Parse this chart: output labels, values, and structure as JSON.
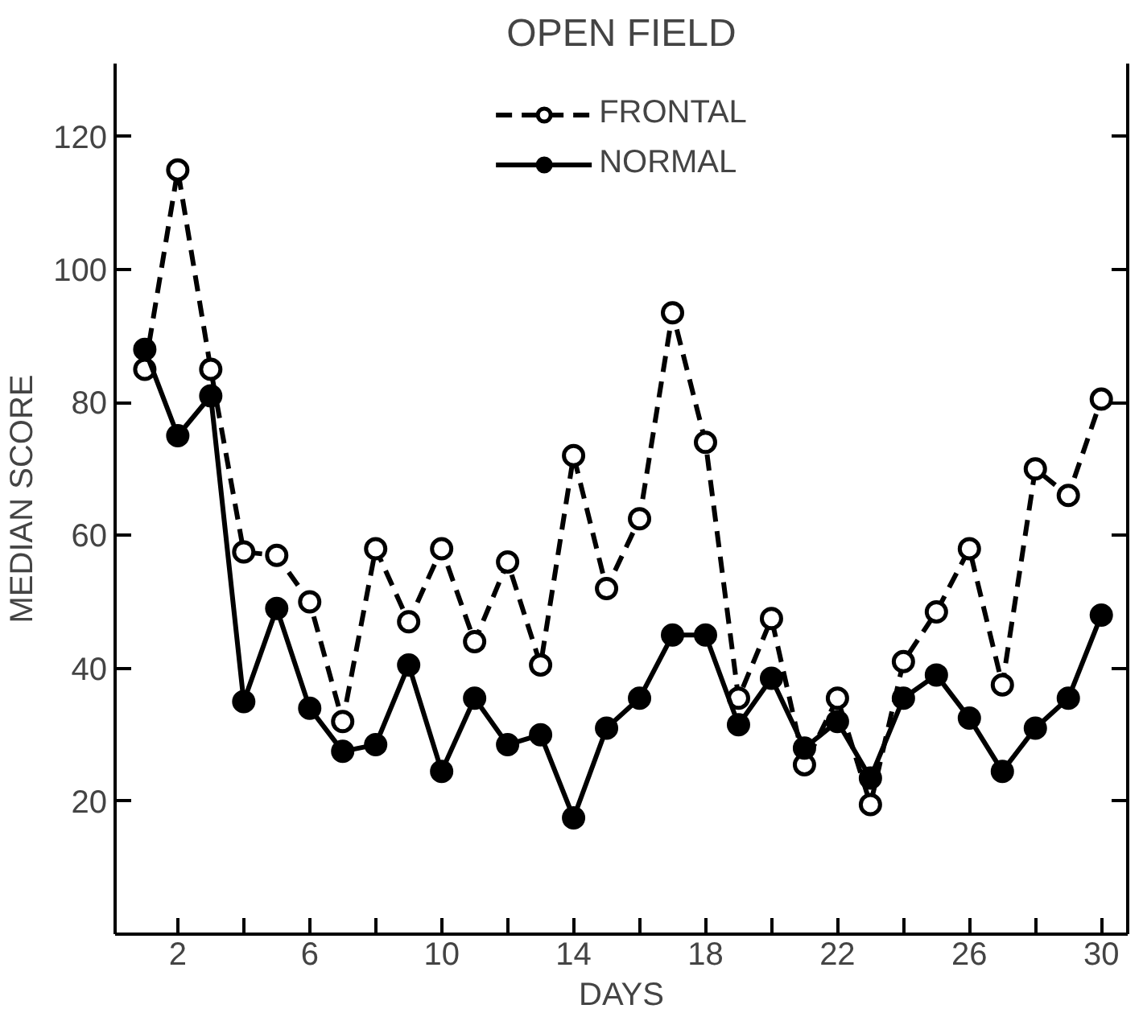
{
  "chart_data": {
    "type": "line",
    "title": "OPEN FIELD",
    "xlabel": "DAYS",
    "ylabel": "MEDIAN SCORE",
    "x": [
      1,
      2,
      3,
      4,
      5,
      6,
      7,
      8,
      9,
      10,
      11,
      12,
      13,
      14,
      15,
      16,
      17,
      18,
      19,
      20,
      21,
      22,
      23,
      24,
      25,
      26,
      27,
      28,
      29,
      30
    ],
    "series": [
      {
        "name": "FRONTAL",
        "color": "#000000",
        "line_style": "dashed",
        "marker": "circle",
        "values": [
          85,
          115,
          85,
          57.5,
          57,
          50,
          32,
          58,
          47,
          58,
          44,
          56,
          40.5,
          72,
          52,
          62.5,
          93.5,
          74,
          35.5,
          47.5,
          25.5,
          35.5,
          19.5,
          41,
          48.5,
          58,
          37.5,
          70,
          66,
          80.5
        ]
      },
      {
        "name": "NORMAL",
        "color": "#000000",
        "line_style": "solid",
        "marker": "circle",
        "values": [
          88,
          75,
          81,
          35,
          49,
          34,
          27.5,
          28.5,
          40.5,
          24.5,
          35.5,
          28.5,
          30,
          17.5,
          31,
          35.5,
          45,
          45,
          31.5,
          38.5,
          28,
          32,
          23.5,
          35.5,
          39,
          32.5,
          24.5,
          31,
          35.5,
          48
        ]
      }
    ],
    "xlim": [
      0.1,
      30.8
    ],
    "ylim": [
      0,
      131
    ],
    "xticks": [
      2,
      {
        "value": 4,
        "label": null
      },
      6,
      {
        "value": 8,
        "label": null
      },
      10,
      {
        "value": 12,
        "label": null
      },
      14,
      {
        "value": 16,
        "label": null
      },
      18,
      {
        "value": 20,
        "label": null
      },
      22,
      {
        "value": 24,
        "label": null
      },
      26,
      {
        "value": 28,
        "label": null
      },
      30
    ],
    "yticks": [
      20,
      40,
      60,
      80,
      100,
      120
    ],
    "legend": "top",
    "grid": false
  }
}
